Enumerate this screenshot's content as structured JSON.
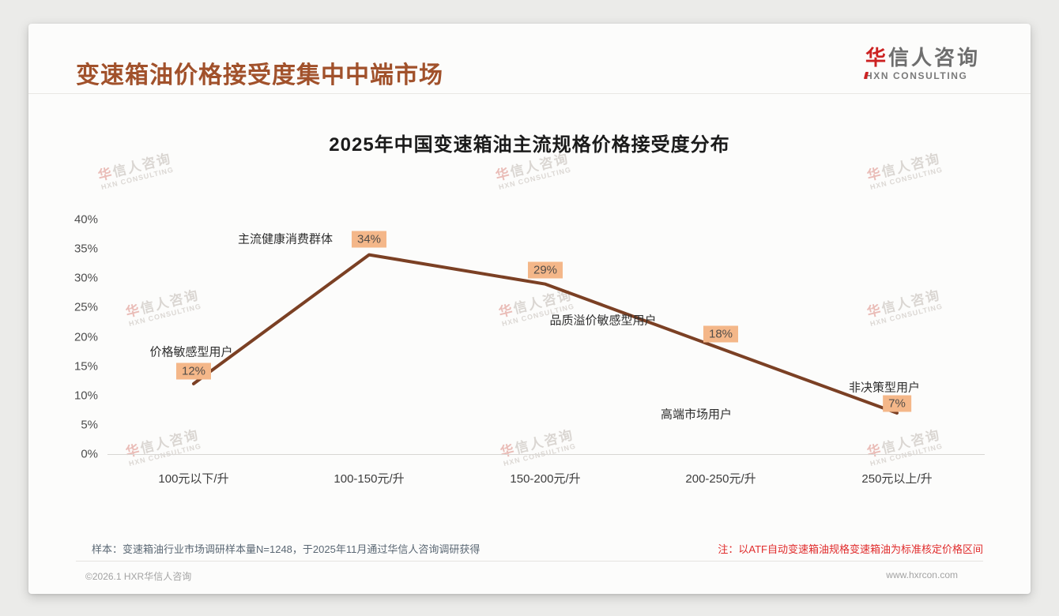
{
  "header": {
    "title": "变速箱油价格接受度集中中端市场",
    "logo": {
      "name_accent": "华",
      "name_rest": "信人咨询",
      "subtitle": "HXN CONSULTING"
    }
  },
  "watermark": {
    "line1_accent": "华",
    "line1_rest": "信人咨询",
    "line2": "HXN CONSULTING"
  },
  "chart_data": {
    "type": "line",
    "title": "2025年中国变速箱油主流规格价格接受度分布",
    "categories": [
      "100元以下/升",
      "100-150元/升",
      "150-200元/升",
      "200-250元/升",
      "250元以上/升"
    ],
    "values": [
      12,
      34,
      29,
      18,
      7
    ],
    "data_labels": [
      "12%",
      "34%",
      "29%",
      "18%",
      "7%"
    ],
    "annotations": [
      "价格敏感型用户",
      "主流健康消费群体",
      "品质溢价敏感型用户",
      "高端市场用户",
      "非决策型用户"
    ],
    "xlabel": "",
    "ylabel": "",
    "ylim": [
      0,
      40
    ],
    "ytick_labels": [
      "40%",
      "35%",
      "30%",
      "25%",
      "20%",
      "15%",
      "10%",
      "5%",
      "0%"
    ],
    "grid": false,
    "legend": false,
    "line_color": "#7b4024",
    "label_bg": "#f4b789"
  },
  "footnotes": {
    "sample_note": "样本：变速箱油行业市场调研样本量N=1248，于2025年11月通过华信人咨询调研获得",
    "standard_note": "注：以ATF自动变速箱油规格变速箱油为标准核定价格区间"
  },
  "footer": {
    "copyright": "©2026.1 HXR华信人咨询",
    "website": "www.hxrcon.com"
  },
  "colors": {
    "title_accent": "#a1512b",
    "line": "#7b4024",
    "badge_bg": "#f4b789",
    "note_red": "#e02b2b",
    "logo_red": "#cc2222"
  }
}
